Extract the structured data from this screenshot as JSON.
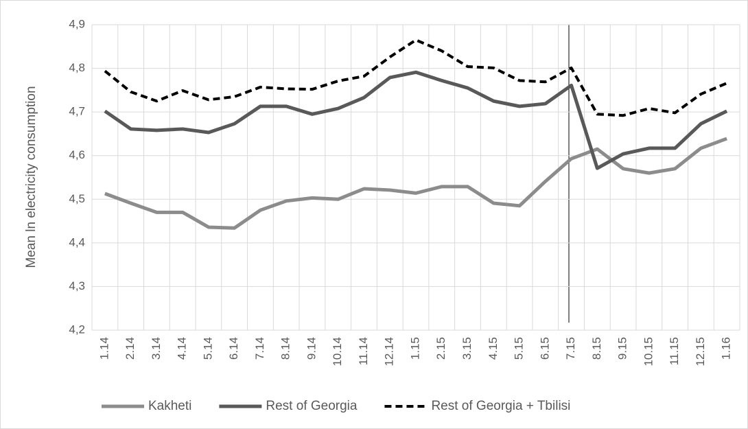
{
  "chart_data": {
    "type": "line",
    "y_label": "Mean ln electricity consumption",
    "categories": [
      "1.14",
      "2.14",
      "3.14",
      "4.14",
      "5.14",
      "6.14",
      "7.14",
      "8.14",
      "9.14",
      "10.14",
      "11.14",
      "12.14",
      "1.15",
      "2.15",
      "3.15",
      "4.15",
      "5.15",
      "6.15",
      "7.15",
      "8.15",
      "9.15",
      "10.15",
      "11.15",
      "12.15",
      "1.16"
    ],
    "series": [
      {
        "name": "Kakheti",
        "color": "#8c8c8c",
        "dash": false,
        "values": [
          4.513,
          4.491,
          4.47,
          4.47,
          4.436,
          4.434,
          4.475,
          4.496,
          4.503,
          4.5,
          4.524,
          4.521,
          4.514,
          4.529,
          4.529,
          4.491,
          4.485,
          4.541,
          4.593,
          4.615,
          4.57,
          4.56,
          4.57,
          4.617,
          4.639
        ]
      },
      {
        "name": "Rest of Georgia",
        "color": "#595959",
        "dash": false,
        "values": [
          4.702,
          4.661,
          4.658,
          4.661,
          4.653,
          4.673,
          4.713,
          4.713,
          4.695,
          4.708,
          4.733,
          4.779,
          4.791,
          4.772,
          4.755,
          4.725,
          4.713,
          4.719,
          4.761,
          4.571,
          4.604,
          4.617,
          4.617,
          4.673,
          4.702
        ]
      },
      {
        "name": "Rest of Georgia + Tbilisi",
        "color": "#000000",
        "dash": true,
        "values": [
          4.794,
          4.746,
          4.725,
          4.749,
          4.728,
          4.735,
          4.757,
          4.753,
          4.752,
          4.771,
          4.782,
          4.826,
          4.865,
          4.84,
          4.804,
          4.801,
          4.772,
          4.769,
          4.801,
          4.695,
          4.692,
          4.708,
          4.698,
          4.741,
          4.766
        ]
      }
    ],
    "ylim": [
      4.2,
      4.9
    ],
    "yticks": [
      {
        "value": 4.2,
        "label": "4,2"
      },
      {
        "value": 4.3,
        "label": "4,3"
      },
      {
        "value": 4.4,
        "label": "4,4"
      },
      {
        "value": 4.5,
        "label": "4,5"
      },
      {
        "value": 4.6,
        "label": "4,6"
      },
      {
        "value": 4.7,
        "label": "4,7"
      },
      {
        "value": 4.8,
        "label": "4,8"
      },
      {
        "value": 4.9,
        "label": "4,9"
      }
    ],
    "grid": true,
    "legend": "bottom"
  }
}
